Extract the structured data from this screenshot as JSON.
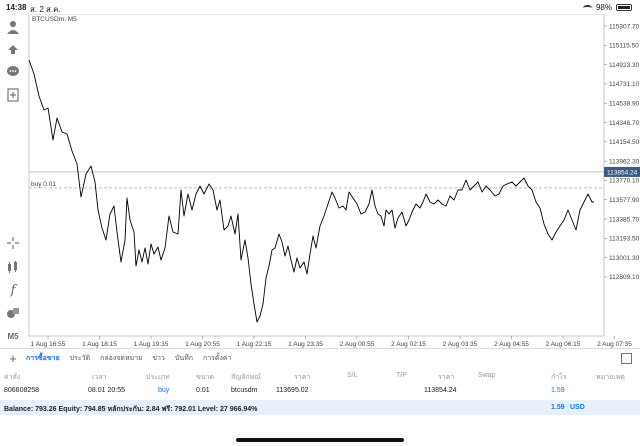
{
  "status_bar": {
    "time": "14:38",
    "date": "ส. 2 ส.ค.",
    "battery": "98%"
  },
  "chart": {
    "symbol_label": "BTCUSDm, M5",
    "price_levels": [
      "115307.70",
      "115115.50",
      "114923.30",
      "114731.10",
      "114538.90",
      "114346.70",
      "114154.50",
      "113962.30",
      "113770.10",
      "113577.90",
      "113385.70",
      "113193.50",
      "113001.30",
      "112809.10"
    ],
    "current_price": "113854.24",
    "current_price_value": 113854.24,
    "order_line_label": "buy 0.01",
    "order_line_value": 113695.02,
    "time_labels": [
      "1 Aug 16:55",
      "1 Aug 18:15",
      "1 Aug 19:35",
      "1 Aug 20:55",
      "1 Aug 22:15",
      "1 Aug 23:35",
      "2 Aug 00:55",
      "2 Aug 02:15",
      "2 Aug 03:35",
      "2 Aug 04:55",
      "2 Aug 06:15",
      "2 Aug 07:35"
    ],
    "line_color": "#000000",
    "price_tag_color": "#3d5a80"
  },
  "toolbar": {
    "icons": [
      "person-icon",
      "account-swap-icon",
      "chat-icon",
      "add-document-icon",
      "crosshair-icon",
      "indicators-icon",
      "function-icon",
      "objects-icon",
      "timeframe-icon"
    ],
    "timeframe": "M5"
  },
  "tabs": [
    "การซื้อขาย",
    "ประวัติ",
    "กล่องจดหมาย",
    "ข่าว",
    "บันทึก",
    "การตั้งค่า"
  ],
  "positions": {
    "headers": {
      "account": "ค่าสั่ง",
      "time": "เวลา",
      "type": "ประเภท",
      "size": "ขนาด",
      "symbol": "สัญลักษณ์",
      "price": "ราคา",
      "sl": "S/L",
      "tp": "T/P",
      "price2": "ราคา",
      "swap": "Swap",
      "profit": "กำไร",
      "comment": "หมายเหตุ"
    },
    "rows": [
      {
        "account": "806608258",
        "time": "08.01 20:55",
        "type": "buy",
        "size": "0.01",
        "symbol": "btcusdm",
        "price": "113695.02",
        "sl": "",
        "tp": "",
        "price2": "113854.24",
        "swap": "",
        "profit": "1.59",
        "comment": ""
      }
    ]
  },
  "balance": {
    "text": "Balance: 793.26 Equity: 794.85 หลักประกัน: 2.84 ฟรี: 792.01 Level: 27 966.94%",
    "profit": "1.59",
    "currency": "USD"
  }
}
